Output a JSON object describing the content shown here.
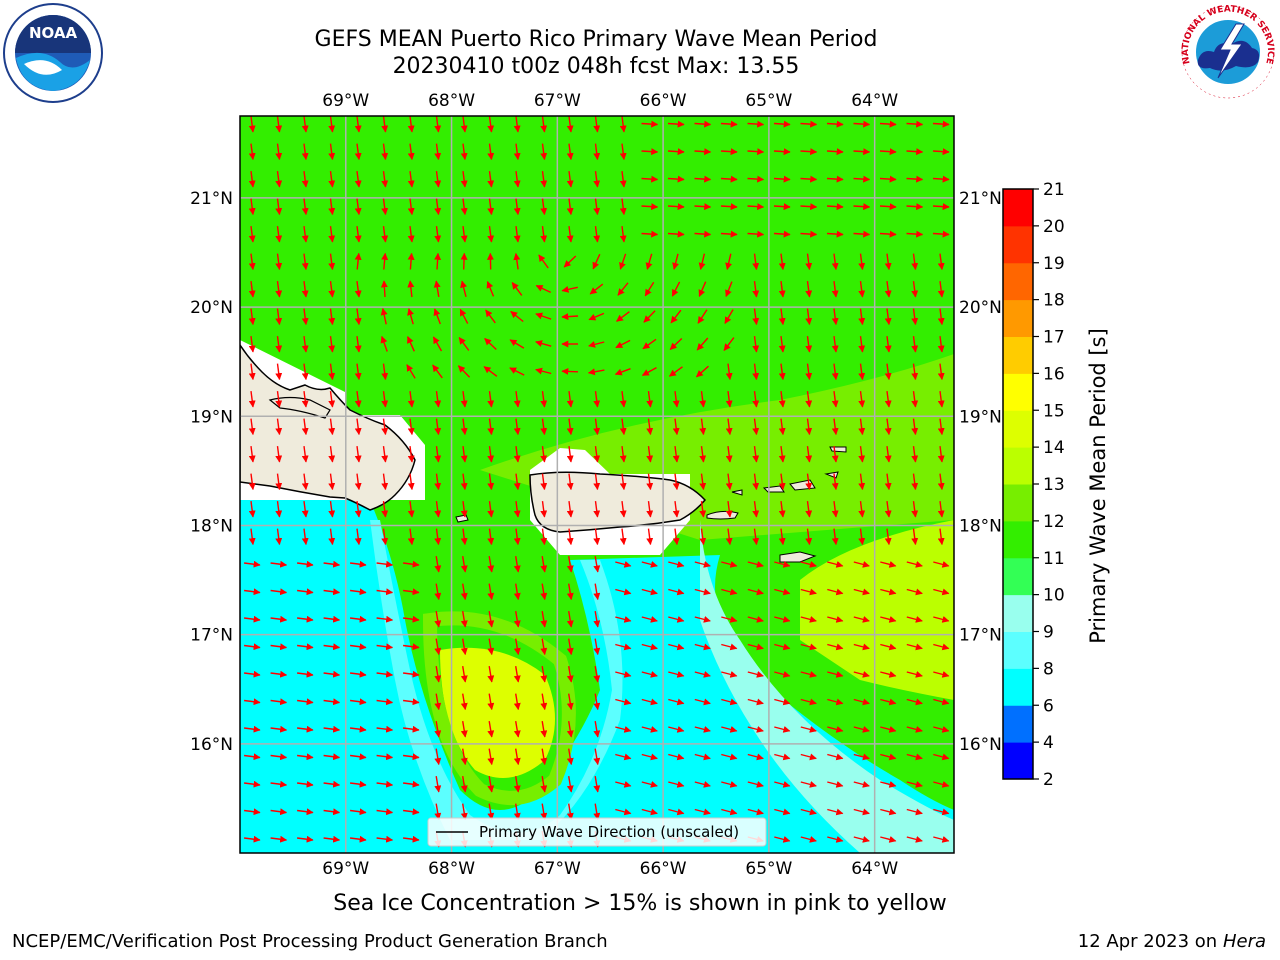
{
  "title": {
    "line1": "GEFS MEAN Puerto Rico Primary Wave Mean Period",
    "line2": "20230410 t00z 048h fcst   Max: 13.55"
  },
  "logos": {
    "noaa_text": "NOAA",
    "noaa_ring": "NATIONAL OCEANIC AND ATMOSPHERIC ADMINISTRATION · U.S. DEPARTMENT OF COMMERCE",
    "nws_ring": "NATIONAL WEATHER SERVICE"
  },
  "map": {
    "lon_ticks": [
      "69°W",
      "68°W",
      "67°W",
      "66°W",
      "65°W",
      "64°W"
    ],
    "lat_ticks": [
      "21°N",
      "20°N",
      "19°N",
      "18°N",
      "17°N",
      "16°N"
    ],
    "lon_values": [
      -69,
      -68,
      -67,
      -66,
      -65,
      -64
    ],
    "lat_values": [
      21,
      20,
      19,
      18,
      17,
      16
    ],
    "extent": {
      "lon_min": -70.0,
      "lon_max": -63.25,
      "lat_min": 15.0,
      "lat_max": 21.75
    },
    "legend_label": "Primary Wave Direction (unscaled)",
    "arrow_color": "#ff0000",
    "land_color": "#efebdc"
  },
  "colorbar": {
    "label": "Primary Wave Mean Period [s]",
    "ticks": [
      "21",
      "20",
      "19",
      "18",
      "17",
      "16",
      "15",
      "14",
      "13",
      "12",
      "11",
      "10",
      "9",
      "8",
      "6",
      "4",
      "2"
    ],
    "colors": [
      "#0000ff",
      "#0070ff",
      "#00ffff",
      "#5cffff",
      "#99ffee",
      "#33ff55",
      "#33ee00",
      "#77ee00",
      "#bbff00",
      "#ddff00",
      "#ffff00",
      "#ffcc00",
      "#ff9900",
      "#ff6600",
      "#ff3300",
      "#ff0000"
    ]
  },
  "field_colors": {
    "cyan": "#00ffff",
    "light_cyan": "#99ffee",
    "mid_cyan": "#5cffff",
    "green_11": "#33ee00",
    "green_12": "#77ee00",
    "yellow_green": "#bbff00",
    "yellow_14": "#ddff00"
  },
  "footer": {
    "note": "Sea Ice Concentration > 15% is shown in pink to yellow",
    "left": "NCEP/EMC/Verification Post Processing Product Generation Branch",
    "right_prefix": "12 Apr 2023 on ",
    "right_machine": "Hera"
  }
}
